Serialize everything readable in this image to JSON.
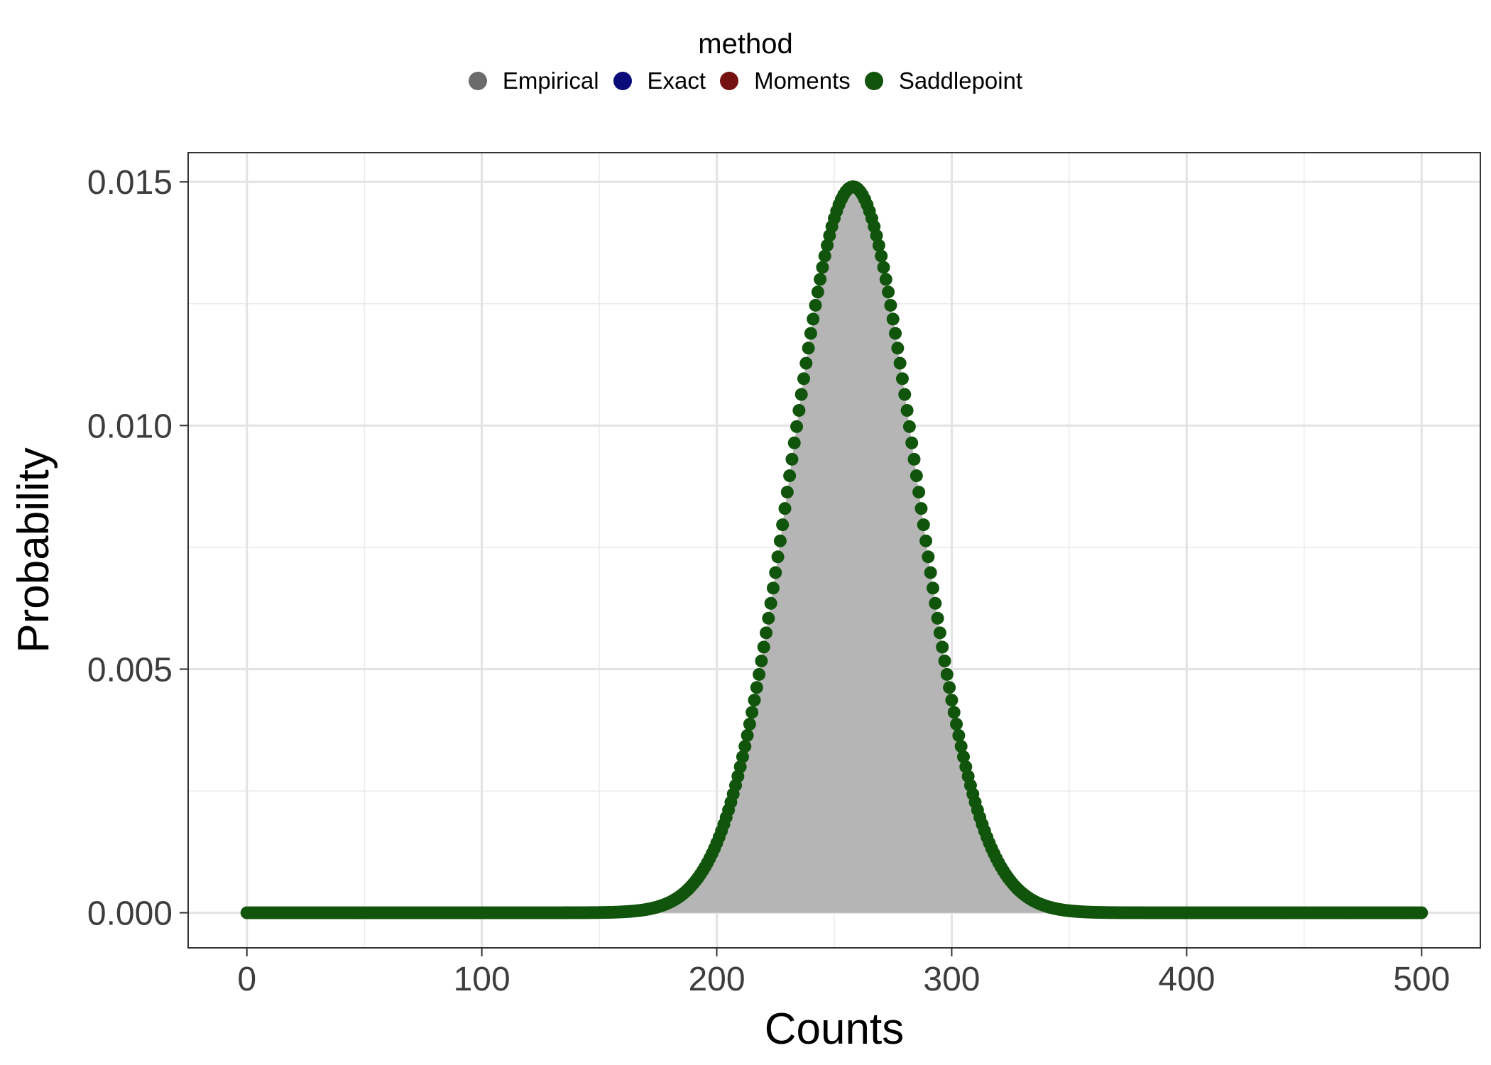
{
  "chart_data": {
    "type": "scatter",
    "xlabel": "Counts",
    "ylabel": "Probability",
    "xlim": [
      -25,
      525
    ],
    "ylim": [
      -0.00072,
      0.0156
    ],
    "x_ticks": [
      0,
      100,
      200,
      300,
      400,
      500
    ],
    "x_tick_labels": [
      "0",
      "100",
      "200",
      "300",
      "400",
      "500"
    ],
    "y_ticks": [
      0,
      0.005,
      0.01,
      0.015
    ],
    "y_tick_labels": [
      "0.000",
      "0.005",
      "0.010",
      "0.015"
    ],
    "grid": true,
    "legend": {
      "title": "method",
      "placement": "top",
      "entries": [
        {
          "name": "Empirical",
          "color": "#6b6b6b"
        },
        {
          "name": "Exact",
          "color": "#0b0b7a"
        },
        {
          "name": "Moments",
          "color": "#741111"
        },
        {
          "name": "Saddlepoint",
          "color": "#11540b"
        }
      ]
    },
    "x_range": [
      0,
      500
    ],
    "x_step": 1,
    "distribution_peak": {
      "x": 258,
      "y": 0.0149
    },
    "distribution_spread": 26.8,
    "empirical_fill_color": "#b5b5b5",
    "point_color": "#11540b"
  }
}
